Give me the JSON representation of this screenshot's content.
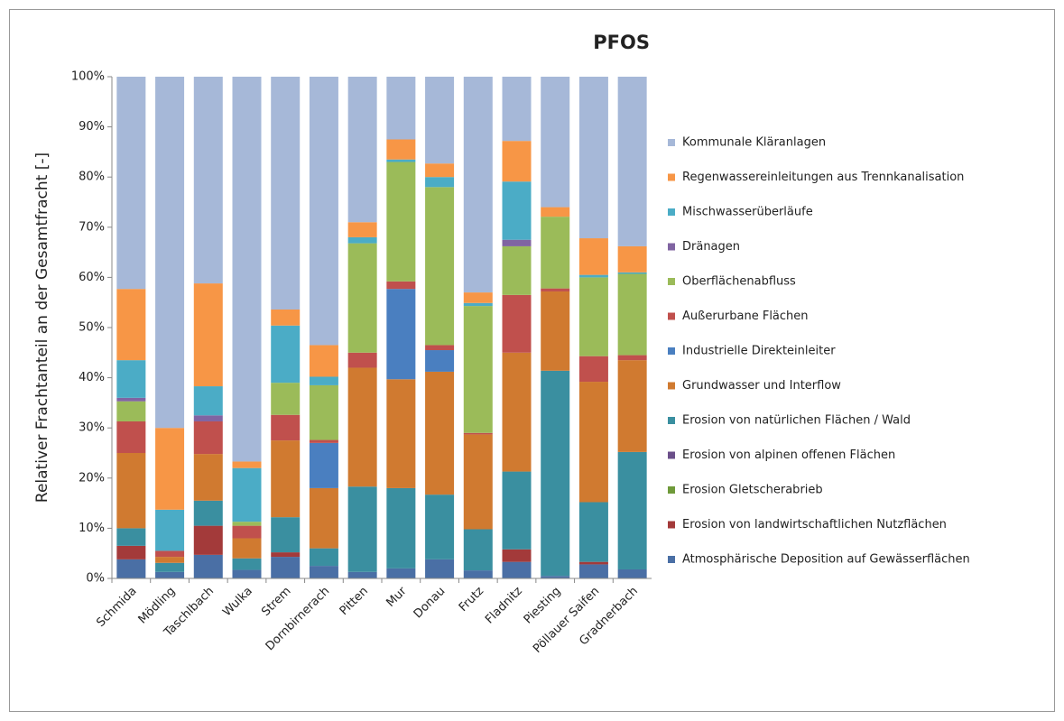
{
  "chart_data": {
    "type": "stacked_bar",
    "title": "PFOS",
    "y_label": "Relativer Frachtanteil an der Gesamtfracht [-]",
    "categories": [
      "Schmida",
      "Mödling",
      "Taschlbach",
      "Wulka",
      "Strem",
      "Dornbirnerach",
      "Pitten",
      "Mur",
      "Donau",
      "Frutz",
      "Fladnitz",
      "Piesting",
      "Pöllauer Saifen",
      "Gradnerbach"
    ],
    "ylim": [
      0,
      100
    ],
    "yticks": [
      {
        "value": 0,
        "label": "0%"
      },
      {
        "value": 10,
        "label": "10%"
      },
      {
        "value": 20,
        "label": "20%"
      },
      {
        "value": 30,
        "label": "30%"
      },
      {
        "value": 40,
        "label": "40%"
      },
      {
        "value": 50,
        "label": "50%"
      },
      {
        "value": 60,
        "label": "60%"
      },
      {
        "value": 70,
        "label": "70%"
      },
      {
        "value": 80,
        "label": "80%"
      },
      {
        "value": 90,
        "label": "90%"
      },
      {
        "value": 100,
        "label": "100%"
      }
    ],
    "grid": false,
    "legend": "right",
    "series": [
      {
        "name": "Atmosphärische Deposition auf Gewässerflächen",
        "color": "#4a6fa5",
        "values": [
          3.8,
          1.3,
          4.7,
          1.7,
          4.3,
          2.5,
          1.3,
          2,
          3.8,
          1.6,
          3.3,
          0.5,
          2.8,
          1.8
        ]
      },
      {
        "name": "Erosion von landwirtschaftlichen Nutzflächen",
        "color": "#a33a3a",
        "values": [
          2.7,
          0,
          5.8,
          0,
          0.9,
          0,
          0,
          0,
          0,
          0,
          2.5,
          0,
          0.5,
          0
        ]
      },
      {
        "name": "Erosion Gletscherabrieb",
        "color": "#6f9a3a",
        "values": [
          0,
          0,
          0,
          0,
          0,
          0,
          0,
          0,
          0,
          0,
          0,
          0,
          0,
          0
        ]
      },
      {
        "name": "Erosion von alpinen offenen Flächen",
        "color": "#6b4f8a",
        "values": [
          0,
          0,
          0,
          0,
          0,
          0,
          0,
          0,
          0,
          0,
          0,
          0,
          0,
          0
        ]
      },
      {
        "name": "Erosion von natürlichen Flächen / Wald",
        "color": "#3a8fa0",
        "values": [
          3.5,
          1.8,
          5,
          2.3,
          7,
          3.5,
          17,
          16,
          12.9,
          8.2,
          15.5,
          40.9,
          11.9,
          23.4
        ]
      },
      {
        "name": "Grundwasser und Interflow",
        "color": "#d07a30",
        "values": [
          15,
          1.2,
          9.3,
          4,
          15.3,
          12,
          23.7,
          21.7,
          24.5,
          18.9,
          23.7,
          15.8,
          24,
          18.3
        ]
      },
      {
        "name": "Industrielle Direkteinleiter",
        "color": "#4a7fc0",
        "values": [
          0,
          0,
          0,
          0,
          0,
          9,
          0,
          18,
          4.3,
          0,
          0,
          0,
          0,
          0
        ]
      },
      {
        "name": "Außerurbane Flächen",
        "color": "#c0504d",
        "values": [
          6.3,
          1.2,
          6.5,
          2.5,
          5.1,
          0.6,
          3,
          1.5,
          1,
          0.3,
          11.5,
          0.6,
          5.1,
          1
        ]
      },
      {
        "name": "Oberflächenabfluss",
        "color": "#9bbb59",
        "values": [
          4,
          0,
          0,
          0.8,
          6.4,
          10.9,
          21.8,
          23.8,
          31.5,
          25.3,
          9.7,
          14.3,
          15.7,
          16.2
        ]
      },
      {
        "name": "Dränagen",
        "color": "#8064a2",
        "values": [
          0.7,
          0,
          1.2,
          0,
          0,
          0,
          0,
          0,
          0,
          0,
          1.3,
          0,
          0,
          0
        ]
      },
      {
        "name": "Mischwasserüberläufe",
        "color": "#4bacc6",
        "values": [
          7.5,
          8.2,
          5.8,
          10.7,
          11.4,
          1.7,
          1.2,
          0.5,
          2,
          0.6,
          11.6,
          0,
          0.5,
          0.3
        ]
      },
      {
        "name": "Regenwassereinleitungen aus Trennkanalisation",
        "color": "#f79646",
        "values": [
          14.2,
          16.3,
          20.5,
          1.3,
          3.2,
          6.3,
          3,
          4,
          2.7,
          2.1,
          8.1,
          1.9,
          7.3,
          5.2
        ]
      },
      {
        "name": "Kommunale Kläranlagen",
        "color": "#a6b8d8",
        "values": [
          42.3,
          70,
          41.2,
          76.7,
          46.4,
          53.5,
          29,
          12.5,
          17.3,
          43,
          12.8,
          26,
          32.2,
          33.8
        ]
      }
    ]
  }
}
